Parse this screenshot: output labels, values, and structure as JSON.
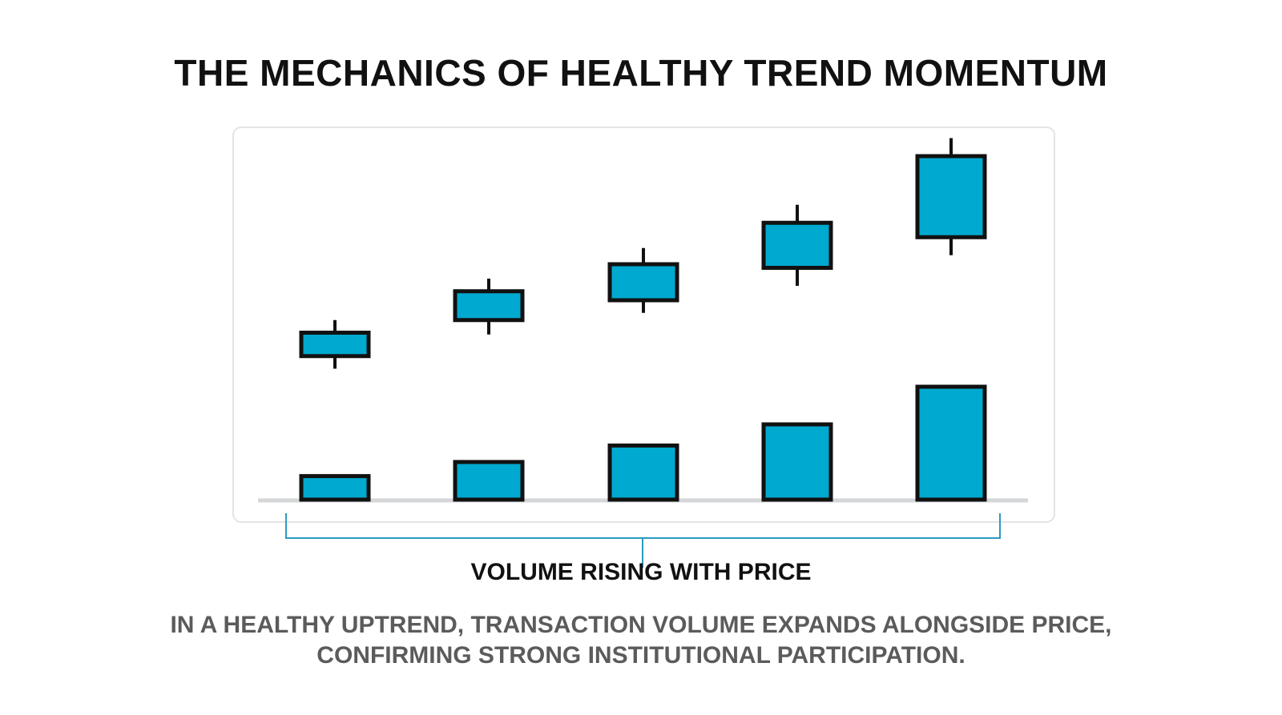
{
  "title": "THE MECHANICS OF HEALTHY TREND MOMENTUM",
  "caption": "VOLUME RISING WITH PRICE",
  "description": {
    "line1": "IN A HEALTHY UPTREND, TRANSACTION VOLUME EXPANDS ALONGSIDE PRICE,",
    "line2": "CONFIRMING STRONG INSTITUTIONAL PARTICIPATION."
  },
  "colors": {
    "candle_fill": "#00a9cf",
    "outline": "#111111",
    "bracket": "#2b9bbf",
    "panel_border": "#e2e4e6",
    "baseline": "#d4d6d8"
  },
  "chart_data": {
    "type": "candlestick",
    "candles": [
      {
        "open": 1.45,
        "close": 2.1,
        "high": 2.45,
        "low": 1.1
      },
      {
        "open": 2.45,
        "close": 3.25,
        "high": 3.6,
        "low": 2.05
      },
      {
        "open": 3.0,
        "close": 4.0,
        "high": 4.45,
        "low": 2.65
      },
      {
        "open": 3.9,
        "close": 5.15,
        "high": 5.65,
        "low": 3.4
      },
      {
        "open": 4.75,
        "close": 7.0,
        "high": 7.5,
        "low": 4.25
      }
    ],
    "volume": [
      1.0,
      1.6,
      2.3,
      3.2,
      4.8
    ],
    "volume_max": 4.8,
    "price_range": [
      0,
      7.5
    ]
  }
}
